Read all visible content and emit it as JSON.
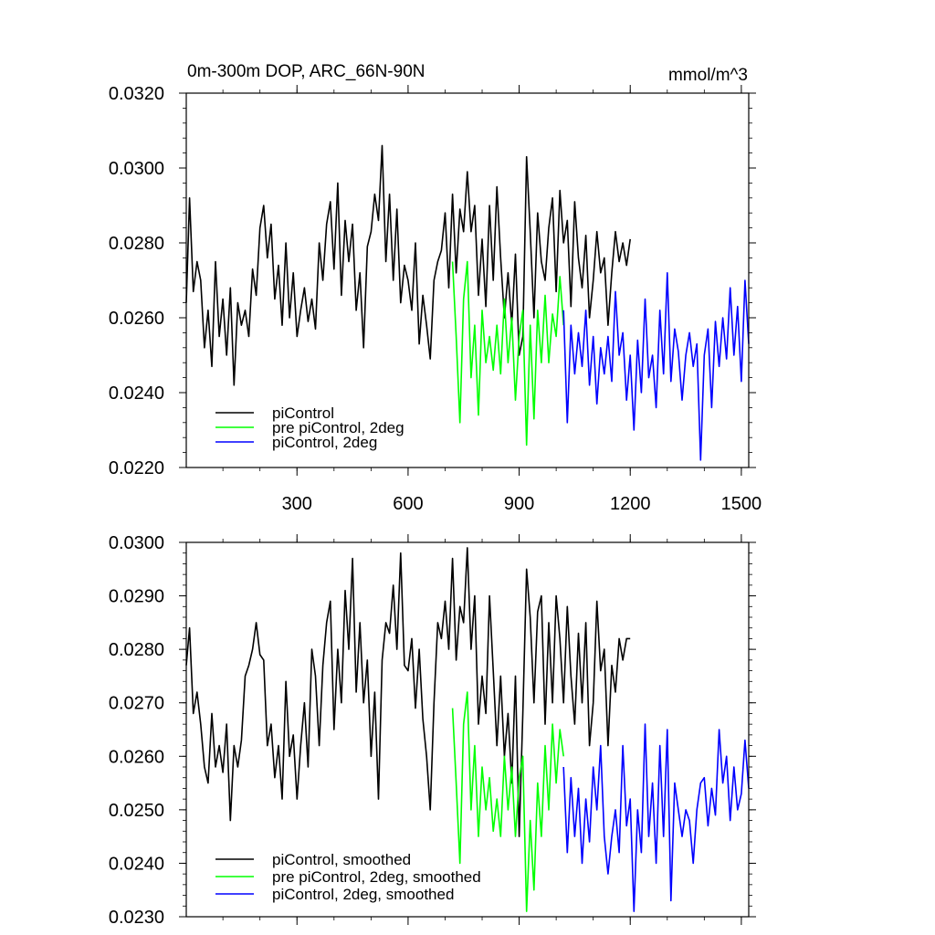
{
  "colors": {
    "black": "#000000",
    "green": "#00ff00",
    "blue": "#0000ff"
  },
  "chart_data": [
    {
      "type": "line",
      "title": "0m-300m DOP, ARC_66N-90N",
      "units": "mmol/m^3",
      "xlim": [
        1,
        1520
      ],
      "ylim": [
        0.022,
        0.032
      ],
      "xticks": [
        300,
        600,
        900,
        1200,
        1500
      ],
      "xtick_labels": [
        "300",
        "600",
        "900",
        "1200",
        "1500"
      ],
      "yticks": [
        0.022,
        0.024,
        0.026,
        0.028,
        0.03,
        0.032
      ],
      "ytick_labels": [
        "0.0220",
        "0.0240",
        "0.0260",
        "0.0280",
        "0.0300",
        "0.0320"
      ],
      "legend_position": "bottom-left",
      "series": [
        {
          "name": "piControl",
          "color": "#000000",
          "x": [
            1,
            10,
            20,
            30,
            40,
            50,
            60,
            70,
            80,
            90,
            100,
            110,
            120,
            130,
            140,
            150,
            160,
            170,
            180,
            190,
            200,
            210,
            220,
            230,
            240,
            250,
            260,
            270,
            280,
            290,
            300,
            310,
            320,
            330,
            340,
            350,
            360,
            370,
            380,
            390,
            400,
            410,
            420,
            430,
            440,
            450,
            460,
            470,
            480,
            490,
            500,
            510,
            520,
            530,
            540,
            550,
            560,
            570,
            580,
            590,
            600,
            610,
            620,
            630,
            640,
            650,
            660,
            670,
            680,
            690,
            700,
            710,
            720,
            730,
            740,
            750,
            760,
            770,
            780,
            790,
            800,
            810,
            820,
            830,
            840,
            850,
            860,
            870,
            880,
            890,
            900,
            910,
            920,
            930,
            940,
            950,
            960,
            970,
            980,
            990,
            1000,
            1010,
            1020,
            1030,
            1040,
            1050,
            1060,
            1070,
            1080,
            1090,
            1100,
            1110,
            1120,
            1130,
            1140,
            1150,
            1160,
            1170,
            1180,
            1190,
            1200
          ],
          "y": [
            0.0264,
            0.0292,
            0.0267,
            0.0275,
            0.027,
            0.0252,
            0.0262,
            0.0247,
            0.0275,
            0.0255,
            0.0265,
            0.025,
            0.0268,
            0.0242,
            0.0264,
            0.0258,
            0.0262,
            0.0255,
            0.0273,
            0.0266,
            0.0284,
            0.029,
            0.0276,
            0.0285,
            0.0265,
            0.0274,
            0.0258,
            0.028,
            0.026,
            0.0272,
            0.0255,
            0.0262,
            0.0268,
            0.0259,
            0.0265,
            0.0257,
            0.028,
            0.027,
            0.0285,
            0.0291,
            0.0273,
            0.0296,
            0.0266,
            0.0286,
            0.0275,
            0.0285,
            0.0262,
            0.0272,
            0.0252,
            0.0279,
            0.0283,
            0.0293,
            0.0286,
            0.0306,
            0.0275,
            0.0293,
            0.027,
            0.0289,
            0.0264,
            0.0274,
            0.027,
            0.0262,
            0.028,
            0.0253,
            0.0266,
            0.0258,
            0.0249,
            0.027,
            0.0275,
            0.0278,
            0.0288,
            0.0268,
            0.0293,
            0.0272,
            0.0289,
            0.0283,
            0.0299,
            0.0283,
            0.029,
            0.0266,
            0.0281,
            0.0263,
            0.029,
            0.027,
            0.0295,
            0.0276,
            0.026,
            0.0272,
            0.0258,
            0.0277,
            0.025,
            0.0255,
            0.0303,
            0.0283,
            0.026,
            0.0288,
            0.0275,
            0.027,
            0.0284,
            0.0292,
            0.0267,
            0.0294,
            0.028,
            0.0286,
            0.0263,
            0.0291,
            0.0276,
            0.0268,
            0.0282,
            0.026,
            0.027,
            0.0283,
            0.0272,
            0.0276,
            0.0258,
            0.0272,
            0.0283,
            0.0275,
            0.028,
            0.0274,
            0.0281
          ]
        },
        {
          "name": "pre piControl, 2deg",
          "color": "#00ff00",
          "x": [
            720,
            730,
            740,
            750,
            760,
            770,
            780,
            790,
            800,
            810,
            820,
            830,
            840,
            850,
            860,
            870,
            880,
            890,
            900,
            910,
            920,
            930,
            940,
            950,
            960,
            970,
            980,
            990,
            1000,
            1010,
            1020
          ],
          "y": [
            0.0275,
            0.0255,
            0.0232,
            0.0265,
            0.0275,
            0.0244,
            0.0258,
            0.0234,
            0.0262,
            0.0248,
            0.0255,
            0.0246,
            0.0258,
            0.0245,
            0.0265,
            0.0248,
            0.026,
            0.0238,
            0.0255,
            0.0262,
            0.0226,
            0.0258,
            0.0233,
            0.0262,
            0.0248,
            0.0266,
            0.0248,
            0.0261,
            0.0255,
            0.0271,
            0.0258
          ]
        },
        {
          "name": "piControl, 2deg",
          "color": "#0000ff",
          "x": [
            1020,
            1030,
            1040,
            1050,
            1060,
            1070,
            1080,
            1090,
            1100,
            1110,
            1120,
            1130,
            1140,
            1150,
            1160,
            1170,
            1180,
            1190,
            1200,
            1210,
            1220,
            1230,
            1240,
            1250,
            1260,
            1270,
            1280,
            1290,
            1300,
            1310,
            1320,
            1330,
            1340,
            1350,
            1360,
            1370,
            1380,
            1390,
            1400,
            1410,
            1420,
            1430,
            1440,
            1450,
            1460,
            1470,
            1480,
            1490,
            1500,
            1510,
            1520
          ],
          "y": [
            0.0262,
            0.0232,
            0.0258,
            0.0245,
            0.0256,
            0.0247,
            0.0262,
            0.0242,
            0.0255,
            0.0237,
            0.0252,
            0.0245,
            0.0255,
            0.0243,
            0.0267,
            0.025,
            0.0256,
            0.0238,
            0.025,
            0.023,
            0.0254,
            0.024,
            0.0265,
            0.0244,
            0.025,
            0.0236,
            0.0262,
            0.0245,
            0.0272,
            0.0243,
            0.0257,
            0.0251,
            0.0238,
            0.025,
            0.0256,
            0.0247,
            0.0253,
            0.0222,
            0.025,
            0.0257,
            0.0236,
            0.0259,
            0.0247,
            0.026,
            0.0249,
            0.0268,
            0.025,
            0.0263,
            0.0243,
            0.027,
            0.0253
          ]
        }
      ],
      "legend": [
        "piControl",
        "pre piControl, 2deg",
        "piControl, 2deg"
      ]
    },
    {
      "type": "line",
      "title": "",
      "xlim": [
        1,
        1520
      ],
      "ylim": [
        0.023,
        0.03
      ],
      "xticks": [
        300,
        600,
        900,
        1200,
        1500
      ],
      "yticks": [
        0.023,
        0.024,
        0.025,
        0.026,
        0.027,
        0.028,
        0.029,
        0.03
      ],
      "ytick_labels": [
        "0.0230",
        "0.0240",
        "0.0250",
        "0.0260",
        "0.0270",
        "0.0280",
        "0.0290",
        "0.0300"
      ],
      "legend_position": "bottom-left",
      "series": [
        {
          "name": "piControl, smoothed",
          "color": "#000000",
          "x": [
            1,
            10,
            20,
            30,
            40,
            50,
            60,
            70,
            80,
            90,
            100,
            110,
            120,
            130,
            140,
            150,
            160,
            170,
            180,
            190,
            200,
            210,
            220,
            230,
            240,
            250,
            260,
            270,
            280,
            290,
            300,
            310,
            320,
            330,
            340,
            350,
            360,
            370,
            380,
            390,
            400,
            410,
            420,
            430,
            440,
            450,
            460,
            470,
            480,
            490,
            500,
            510,
            520,
            530,
            540,
            550,
            560,
            570,
            580,
            590,
            600,
            610,
            620,
            630,
            640,
            650,
            660,
            670,
            680,
            690,
            700,
            710,
            720,
            730,
            740,
            750,
            760,
            770,
            780,
            790,
            800,
            810,
            820,
            830,
            840,
            850,
            860,
            870,
            880,
            890,
            900,
            910,
            920,
            930,
            940,
            950,
            960,
            970,
            980,
            990,
            1000,
            1010,
            1020,
            1030,
            1040,
            1050,
            1060,
            1070,
            1080,
            1090,
            1100,
            1110,
            1120,
            1130,
            1140,
            1150,
            1160,
            1170,
            1180,
            1190,
            1200
          ],
          "y": [
            0.0277,
            0.0284,
            0.0268,
            0.0272,
            0.0266,
            0.0258,
            0.0255,
            0.0268,
            0.0258,
            0.0262,
            0.0257,
            0.0266,
            0.0248,
            0.0262,
            0.0258,
            0.0263,
            0.0275,
            0.0277,
            0.028,
            0.0285,
            0.0279,
            0.0278,
            0.0262,
            0.0266,
            0.0256,
            0.0262,
            0.0252,
            0.0274,
            0.026,
            0.0264,
            0.0252,
            0.0262,
            0.027,
            0.0258,
            0.028,
            0.0275,
            0.0262,
            0.0277,
            0.0285,
            0.0289,
            0.0265,
            0.028,
            0.027,
            0.0291,
            0.028,
            0.0297,
            0.0272,
            0.0285,
            0.027,
            0.0278,
            0.026,
            0.0272,
            0.0252,
            0.0278,
            0.0285,
            0.0283,
            0.0292,
            0.028,
            0.0298,
            0.0277,
            0.0276,
            0.0282,
            0.0269,
            0.028,
            0.0267,
            0.026,
            0.025,
            0.027,
            0.0285,
            0.0282,
            0.0289,
            0.028,
            0.0297,
            0.0278,
            0.0288,
            0.0285,
            0.0299,
            0.028,
            0.029,
            0.0266,
            0.0275,
            0.0268,
            0.029,
            0.0276,
            0.0262,
            0.0275,
            0.026,
            0.0268,
            0.0255,
            0.0275,
            0.0245,
            0.0268,
            0.0295,
            0.0286,
            0.027,
            0.0287,
            0.029,
            0.0266,
            0.0285,
            0.027,
            0.029,
            0.0282,
            0.027,
            0.0288,
            0.0275,
            0.0266,
            0.0283,
            0.027,
            0.0285,
            0.0262,
            0.027,
            0.0289,
            0.0276,
            0.028,
            0.0262,
            0.0277,
            0.0272,
            0.0282,
            0.0278,
            0.0282,
            0.0282
          ]
        },
        {
          "name": "pre piControl, 2deg, smoothed",
          "color": "#00ff00",
          "x": [
            720,
            730,
            740,
            750,
            760,
            770,
            780,
            790,
            800,
            810,
            820,
            830,
            840,
            850,
            860,
            870,
            880,
            890,
            900,
            910,
            920,
            930,
            940,
            950,
            960,
            970,
            980,
            990,
            1000,
            1010,
            1020
          ],
          "y": [
            0.0269,
            0.0255,
            0.024,
            0.0266,
            0.0272,
            0.025,
            0.0262,
            0.0245,
            0.0258,
            0.025,
            0.0256,
            0.0246,
            0.0252,
            0.0245,
            0.026,
            0.025,
            0.0258,
            0.0245,
            0.0256,
            0.026,
            0.0231,
            0.0248,
            0.0235,
            0.0255,
            0.0245,
            0.0262,
            0.025,
            0.0266,
            0.0255,
            0.0265,
            0.026
          ]
        },
        {
          "name": "piControl, 2deg, smoothed",
          "color": "#0000ff",
          "x": [
            1020,
            1030,
            1040,
            1050,
            1060,
            1070,
            1080,
            1090,
            1100,
            1110,
            1120,
            1130,
            1140,
            1150,
            1160,
            1170,
            1180,
            1190,
            1200,
            1210,
            1220,
            1230,
            1240,
            1250,
            1260,
            1270,
            1280,
            1290,
            1300,
            1310,
            1320,
            1330,
            1340,
            1350,
            1360,
            1370,
            1380,
            1390,
            1400,
            1410,
            1420,
            1430,
            1440,
            1450,
            1460,
            1470,
            1480,
            1490,
            1500,
            1510,
            1520
          ],
          "y": [
            0.0258,
            0.0242,
            0.0256,
            0.0245,
            0.0254,
            0.024,
            0.0252,
            0.0244,
            0.0258,
            0.025,
            0.0262,
            0.0245,
            0.0238,
            0.0245,
            0.025,
            0.0242,
            0.0262,
            0.0247,
            0.0252,
            0.0231,
            0.025,
            0.0242,
            0.0266,
            0.0245,
            0.0255,
            0.024,
            0.0262,
            0.0245,
            0.0265,
            0.0233,
            0.0255,
            0.025,
            0.0245,
            0.025,
            0.0248,
            0.024,
            0.025,
            0.0255,
            0.0256,
            0.0247,
            0.0254,
            0.0249,
            0.0265,
            0.0255,
            0.026,
            0.0248,
            0.0258,
            0.025,
            0.0253,
            0.0263,
            0.0254
          ]
        }
      ],
      "legend": [
        "piControl, smoothed",
        "pre piControl, 2deg, smoothed",
        "piControl, 2deg, smoothed"
      ]
    }
  ]
}
